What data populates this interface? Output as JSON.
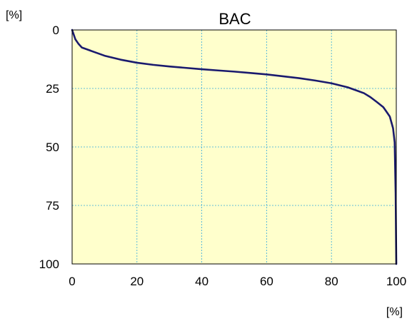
{
  "chart_data": {
    "type": "line",
    "title": "BAC",
    "xlabel": "[%]",
    "ylabel": "[%]",
    "xlim": [
      0,
      100
    ],
    "ylim": [
      0,
      100
    ],
    "y_inverted": true,
    "grid": true,
    "x_ticks": [
      "0",
      "20",
      "40",
      "60",
      "80",
      "100"
    ],
    "y_ticks": [
      "0",
      "25",
      "50",
      "75",
      "100"
    ],
    "series": [
      {
        "x": [
          0,
          0.5,
          1,
          2,
          3,
          5,
          8,
          10,
          15,
          20,
          25,
          30,
          35,
          40,
          45,
          50,
          55,
          60,
          65,
          70,
          75,
          80,
          85,
          88,
          90,
          92,
          94,
          96,
          97,
          98,
          99,
          99.5,
          99.8,
          100
        ],
        "y": [
          0,
          2,
          4,
          6,
          7.5,
          8.5,
          10,
          11,
          12.7,
          14,
          14.9,
          15.6,
          16.2,
          16.8,
          17.3,
          17.8,
          18.4,
          19,
          19.8,
          20.6,
          21.6,
          22.8,
          24.5,
          26,
          27,
          28.7,
          30.8,
          33,
          35,
          37,
          42,
          48,
          70,
          100
        ]
      }
    ],
    "colors": {
      "plot_background": "#ffffcc",
      "grid": "#33aadd",
      "line": "#1a1a6e"
    }
  }
}
